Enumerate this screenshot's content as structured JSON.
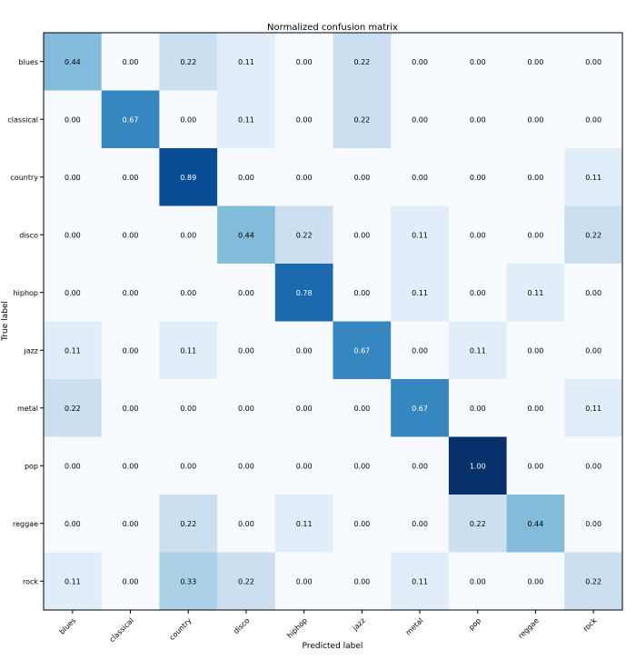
{
  "chart_data": {
    "type": "heatmap",
    "title": "Normalized confusion matrix",
    "xlabel": "Predicted label",
    "ylabel": "True label",
    "x_categories": [
      "blues",
      "classical",
      "country",
      "disco",
      "hiphop",
      "jazz",
      "metal",
      "pop",
      "reggae",
      "rock"
    ],
    "y_categories": [
      "blues",
      "classical",
      "country",
      "disco",
      "hiphop",
      "jazz",
      "metal",
      "pop",
      "reggae",
      "rock"
    ],
    "values": [
      [
        0.44,
        0.0,
        0.22,
        0.11,
        0.0,
        0.22,
        0.0,
        0.0,
        0.0,
        0.0
      ],
      [
        0.0,
        0.67,
        0.0,
        0.11,
        0.0,
        0.22,
        0.0,
        0.0,
        0.0,
        0.0
      ],
      [
        0.0,
        0.0,
        0.89,
        0.0,
        0.0,
        0.0,
        0.0,
        0.0,
        0.0,
        0.11
      ],
      [
        0.0,
        0.0,
        0.0,
        0.44,
        0.22,
        0.0,
        0.11,
        0.0,
        0.0,
        0.22
      ],
      [
        0.0,
        0.0,
        0.0,
        0.0,
        0.78,
        0.0,
        0.11,
        0.0,
        0.11,
        0.0
      ],
      [
        0.11,
        0.0,
        0.11,
        0.0,
        0.0,
        0.67,
        0.0,
        0.11,
        0.0,
        0.0
      ],
      [
        0.22,
        0.0,
        0.0,
        0.0,
        0.0,
        0.0,
        0.67,
        0.0,
        0.0,
        0.11
      ],
      [
        0.0,
        0.0,
        0.0,
        0.0,
        0.0,
        0.0,
        0.0,
        1.0,
        0.0,
        0.0
      ],
      [
        0.0,
        0.0,
        0.22,
        0.0,
        0.11,
        0.0,
        0.0,
        0.22,
        0.44,
        0.0
      ],
      [
        0.11,
        0.0,
        0.33,
        0.22,
        0.0,
        0.0,
        0.11,
        0.0,
        0.0,
        0.22
      ]
    ],
    "value_format_decimals": 2,
    "colormap": "Blues",
    "vmin": 0,
    "vmax": 1,
    "grid": false
  }
}
